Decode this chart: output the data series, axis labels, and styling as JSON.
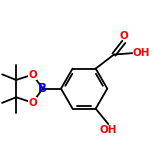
{
  "bg_color": "#ffffff",
  "bond_color": "#000000",
  "oxygen_color": "#ff0000",
  "boron_color": "#0000ff",
  "bond_lw": 1.3,
  "dbo": 0.018,
  "fs": 7.5,
  "figsize": [
    1.52,
    1.52
  ],
  "dpi": 100,
  "xlim": [
    0.0,
    1.0
  ],
  "ylim": [
    0.05,
    1.05
  ]
}
